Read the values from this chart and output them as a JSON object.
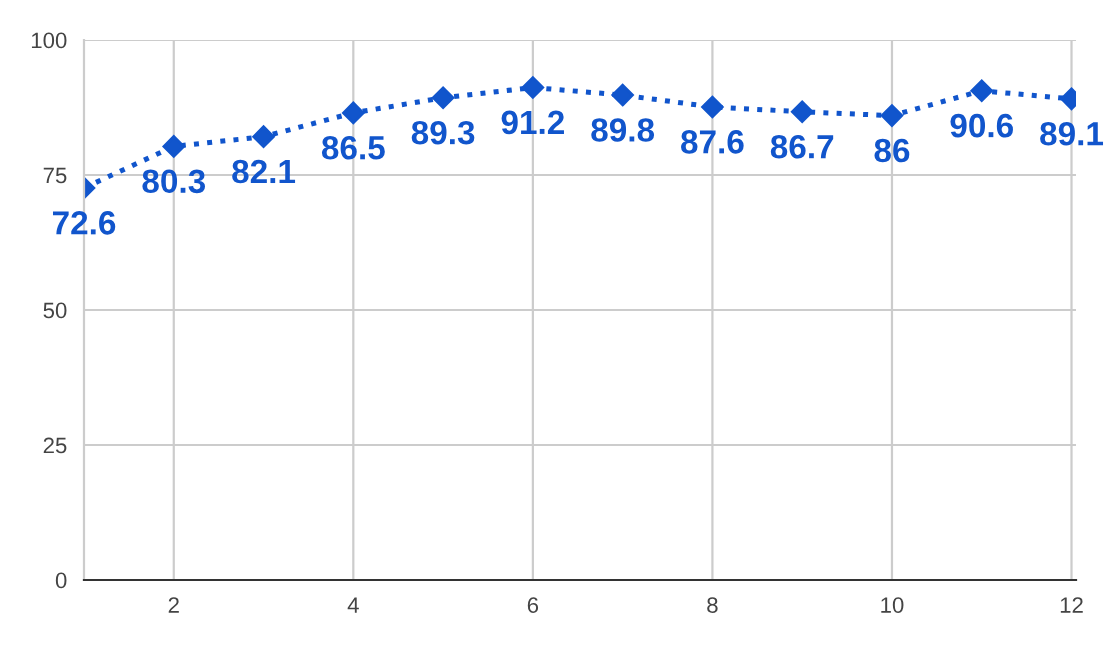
{
  "chart_data": {
    "type": "line",
    "x": [
      1,
      2,
      3,
      4,
      5,
      6,
      7,
      8,
      9,
      10,
      11,
      12
    ],
    "series": [
      {
        "color": "#1155cc",
        "values": [
          72.6,
          80.3,
          82.1,
          86.5,
          89.3,
          91.2,
          89.8,
          87.6,
          86.7,
          86,
          90.6,
          89.1
        ]
      }
    ],
    "xlim": [
      1,
      12.05
    ],
    "xticks": [
      2,
      4,
      6,
      8,
      10,
      12
    ],
    "ylim": [
      0,
      100
    ],
    "yticks": [
      0,
      25,
      50,
      75,
      100
    ],
    "grid": true,
    "marker": "diamond",
    "line_style": "dotted",
    "data_labels": true
  }
}
